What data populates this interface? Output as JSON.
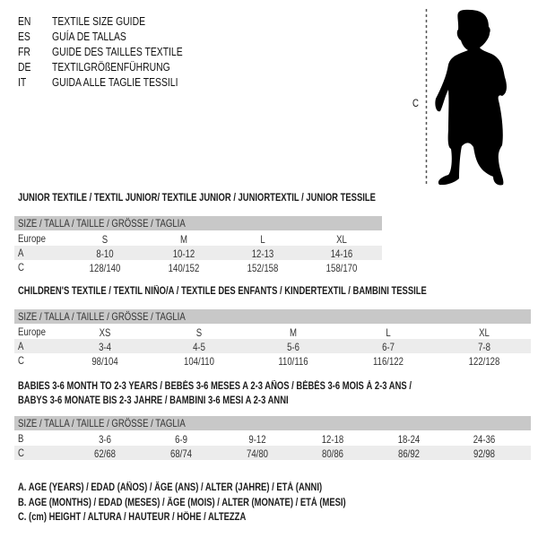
{
  "languages": [
    {
      "code": "EN",
      "title": "TEXTILE SIZE GUIDE"
    },
    {
      "code": "ES",
      "title": "GUÍA DE TALLAS"
    },
    {
      "code": "FR",
      "title": "GUIDE DES TAILLES TEXTILE"
    },
    {
      "code": "DE",
      "title": "TEXTILGRÖßENFÜHRUNG"
    },
    {
      "code": "IT",
      "title": "GUIDA ALLE TAGLIE TESSILI"
    }
  ],
  "figure": {
    "height_label": "C",
    "icon": "baby-silhouette"
  },
  "tables": [
    {
      "heading": [
        "JUNIOR TEXTILE / TEXTIL JUNIOR/ TEXTILE JUNIOR / JUNIORTEXTIL / JUNIOR TESSILE"
      ],
      "header": "SIZE / TALLA / TAILLE / GRÖSSE / TAGLIA",
      "rows": [
        {
          "label": "Europe",
          "values": [
            "S",
            "M",
            "L",
            "XL"
          ]
        },
        {
          "label": "A",
          "values": [
            "8-10",
            "10-12",
            "12-13",
            "14-16"
          ]
        },
        {
          "label": "C",
          "values": [
            "128/140",
            "140/152",
            "152/158",
            "158/170"
          ]
        }
      ]
    },
    {
      "heading": [
        "CHILDREN'S TEXTILE / TEXTIL NIÑO/A / TEXTILE DES ENFANTS / KINDERTEXTIL / BAMBINI TESSILE"
      ],
      "header": "SIZE / TALLA / TAILLE / GRÖSSE / TAGLIA",
      "rows": [
        {
          "label": "Europe",
          "values": [
            "XS",
            "S",
            "M",
            "L",
            "XL"
          ]
        },
        {
          "label": "A",
          "values": [
            "3-4",
            "4-5",
            "5-6",
            "6-7",
            "7-8"
          ]
        },
        {
          "label": "C",
          "values": [
            "98/104",
            "104/110",
            "110/116",
            "116/122",
            "122/128"
          ]
        }
      ]
    },
    {
      "heading": [
        "BABIES 3-6 MONTH TO 2-3 YEARS / BEBÉS 3-6 MESES A 2-3 AÑOS / BÉBÉS 3-6 MOIS À 2-3 ANS /",
        "BABYS 3-6 MONATE BIS 2-3 JAHRE / BAMBINI 3-6 MESI A 2-3 ANNI"
      ],
      "header": "SIZE / TALLA / TAILLE / GRÖSSE / TAGLIA",
      "rows": [
        {
          "label": "B",
          "values": [
            "3-6",
            "6-9",
            "9-12",
            "12-18",
            "18-24",
            "24-36"
          ]
        },
        {
          "label": "C",
          "values": [
            "62/68",
            "68/74",
            "74/80",
            "80/86",
            "86/92",
            "92/98"
          ]
        }
      ]
    }
  ],
  "legend": [
    "A. AGE (YEARS) / EDAD (AÑOS) / ÂGE (ANS) / ALTER (JAHRE) / ETÀ (ANNI)",
    "B. AGE (MONTHS) / EDAD (MESES) / ÂGE (MOIS) / ALTER (MONATE) / ETÀ (MESI)",
    "C. (cm) HEIGHT / ALTURA / HAUTEUR / HÖHE / ALTEZZA"
  ]
}
